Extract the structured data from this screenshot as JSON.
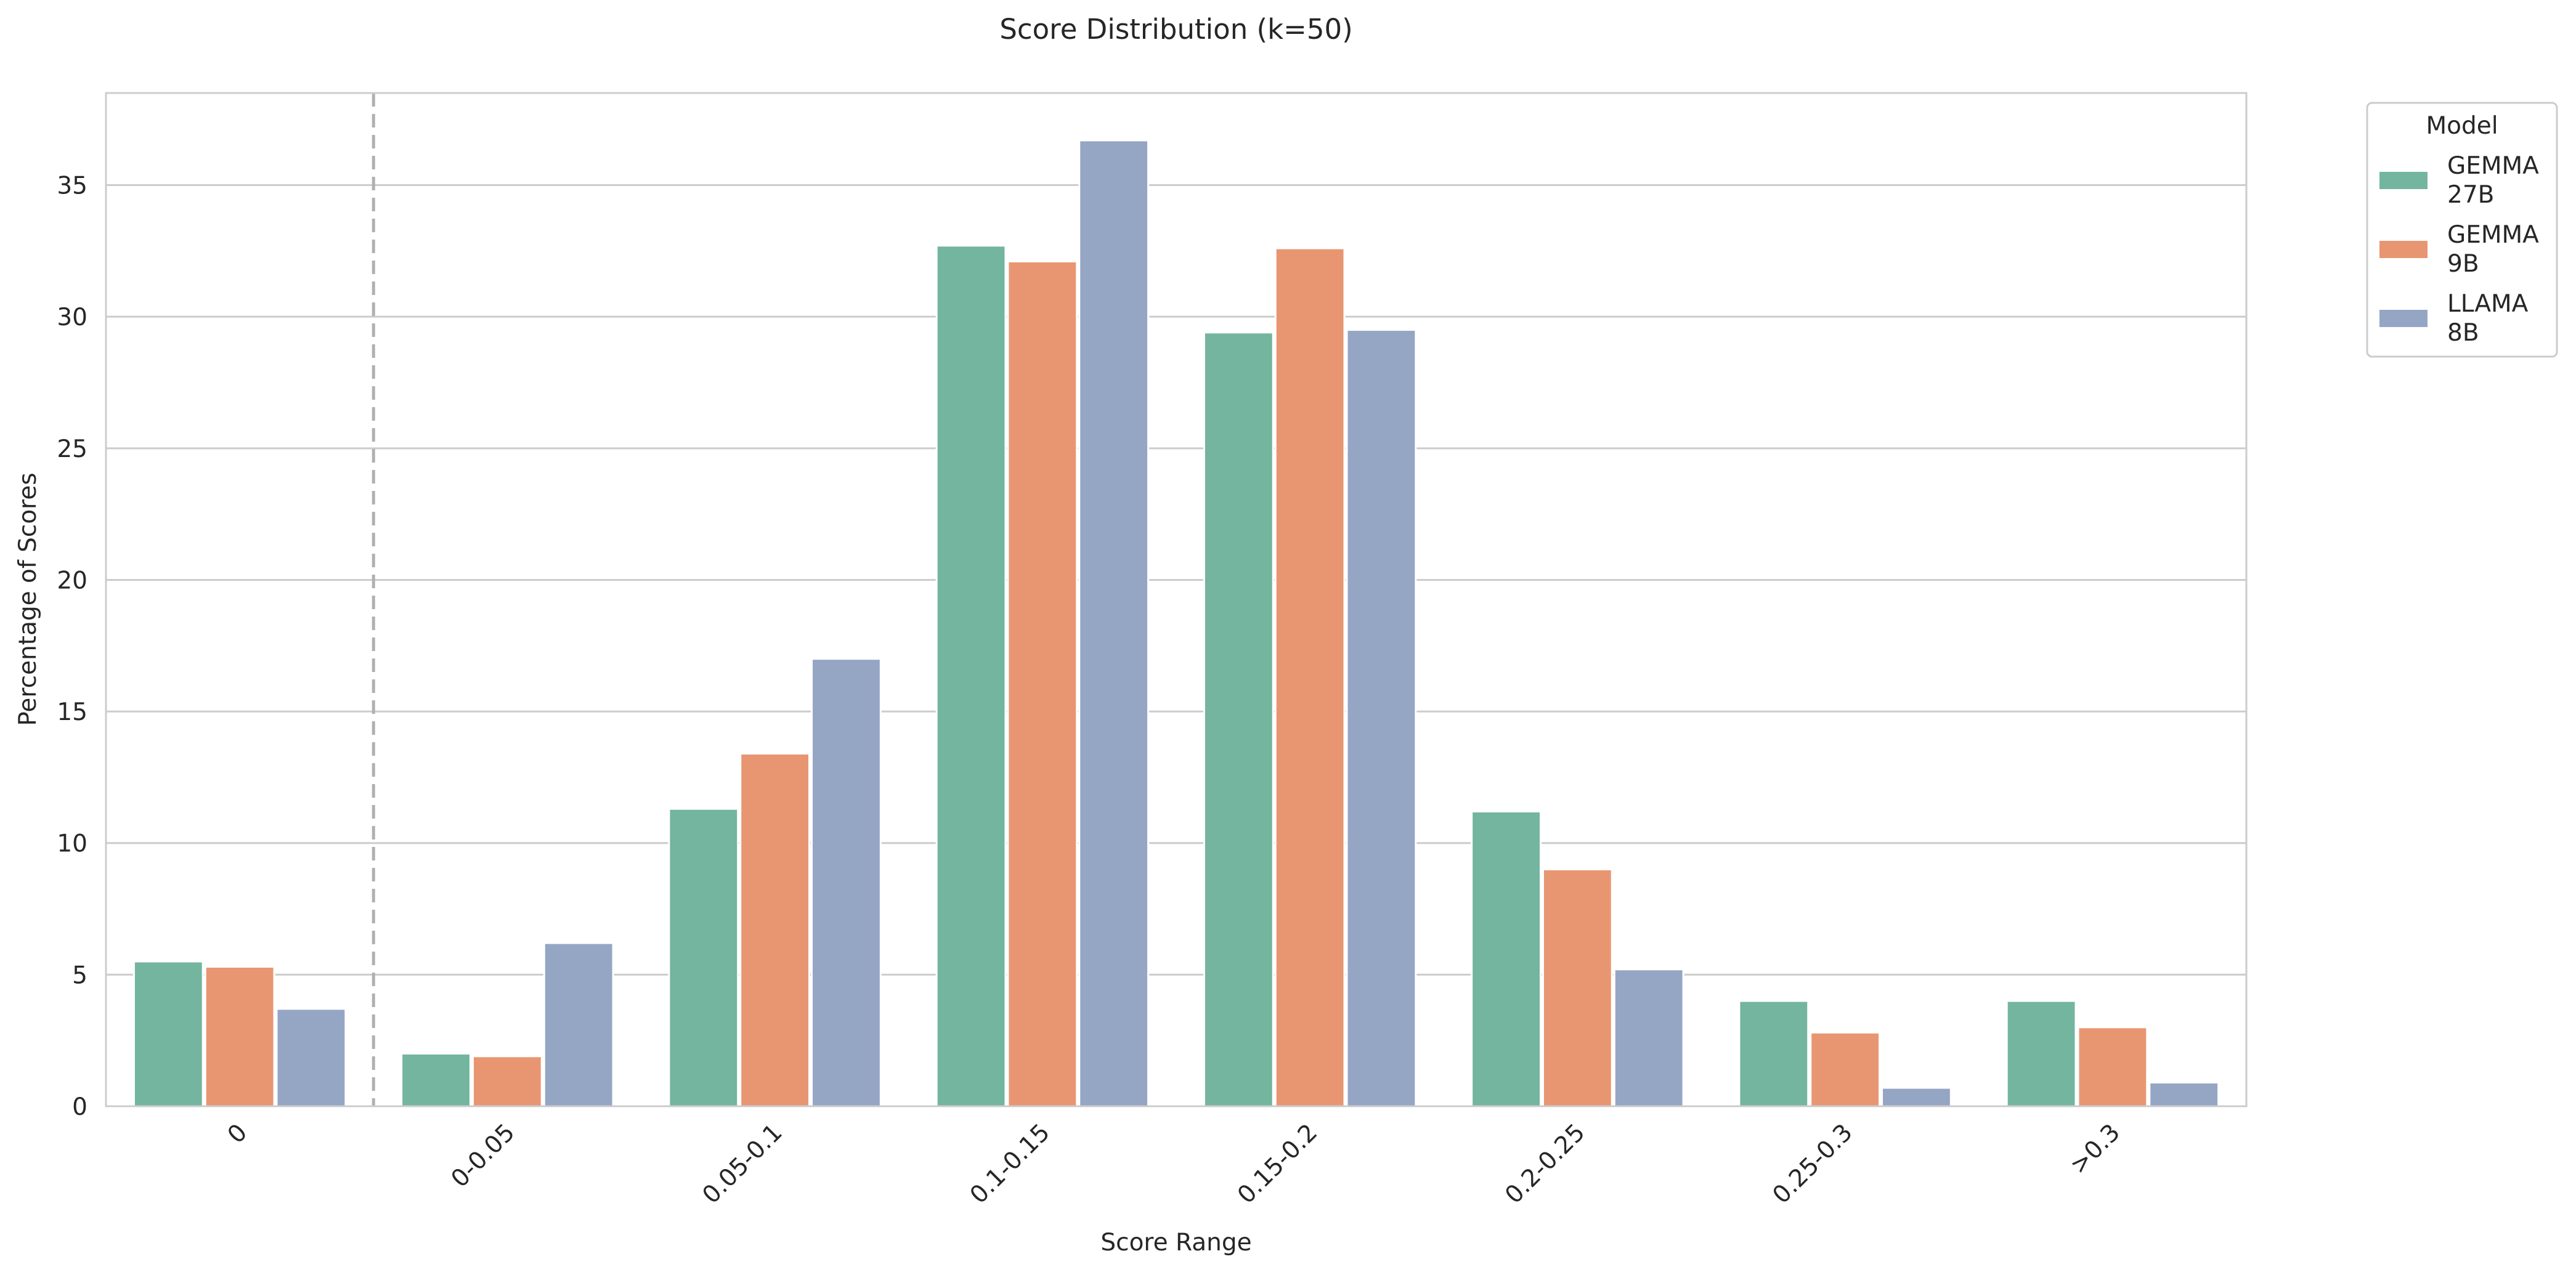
{
  "chart_data": {
    "type": "bar",
    "title": "Score Distribution (k=50)",
    "xlabel": "Score Range",
    "ylabel": "Percentage of Scores",
    "categories": [
      "0",
      "0-0.05",
      "0.05-0.1",
      "0.1-0.15",
      "0.15-0.2",
      "0.2-0.25",
      "0.25-0.3",
      ">0.3"
    ],
    "series": [
      {
        "name": "GEMMA\n27B",
        "color": "#73b59f",
        "values": [
          5.5,
          2.0,
          11.3,
          32.7,
          29.4,
          11.2,
          4.0,
          4.0
        ]
      },
      {
        "name": "GEMMA\n9B",
        "color": "#e89672",
        "values": [
          5.3,
          1.9,
          13.4,
          32.1,
          32.6,
          9.0,
          2.8,
          3.0
        ]
      },
      {
        "name": "LLAMA\n8B",
        "color": "#95a5c4",
        "values": [
          3.7,
          6.2,
          17.0,
          36.7,
          29.5,
          5.2,
          0.7,
          0.9
        ]
      }
    ],
    "ylim": [
      0,
      38.5
    ],
    "yticks": [
      0,
      5,
      10,
      15,
      20,
      25,
      30,
      35
    ],
    "grid": true,
    "legend": {
      "title": "Model",
      "placement": "outside top-right"
    },
    "separator_after_category": "0"
  }
}
